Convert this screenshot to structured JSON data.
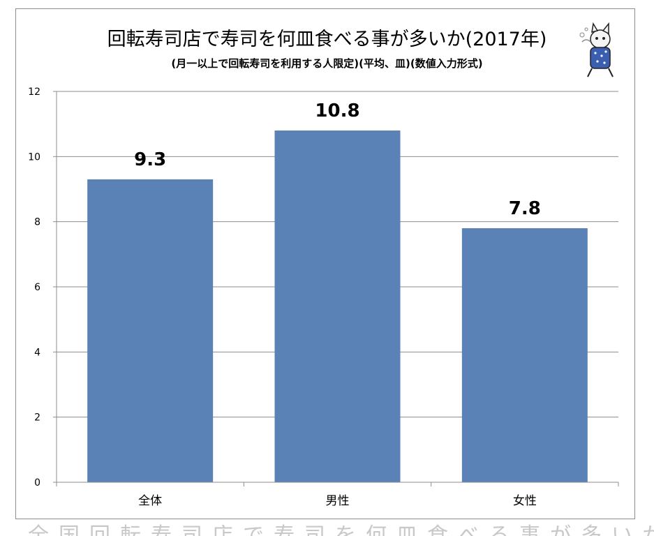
{
  "chart_data": {
    "type": "bar",
    "title": "回転寿司店で寿司を何皿食べる事が多いか(2017年)",
    "subtitle": "(月一以上で回転寿司を利用する人限定)(平均、皿)(数値入力形式)",
    "categories": [
      "全体",
      "男性",
      "女性"
    ],
    "values": [
      9.3,
      10.8,
      7.8
    ],
    "data_labels": [
      "9.3",
      "10.8",
      "7.8"
    ],
    "ylim": [
      0,
      12
    ],
    "yticks": [
      "0",
      "2",
      "4",
      "6",
      "8",
      "10",
      "12"
    ],
    "grid": true,
    "bar_color": "#5b82b7",
    "xlabel": "",
    "ylabel": ""
  },
  "footer_text": "全国回転寿司店で寿司を何皿食べる事が多いか(月一以上で回転寿司を利用する人限定)"
}
